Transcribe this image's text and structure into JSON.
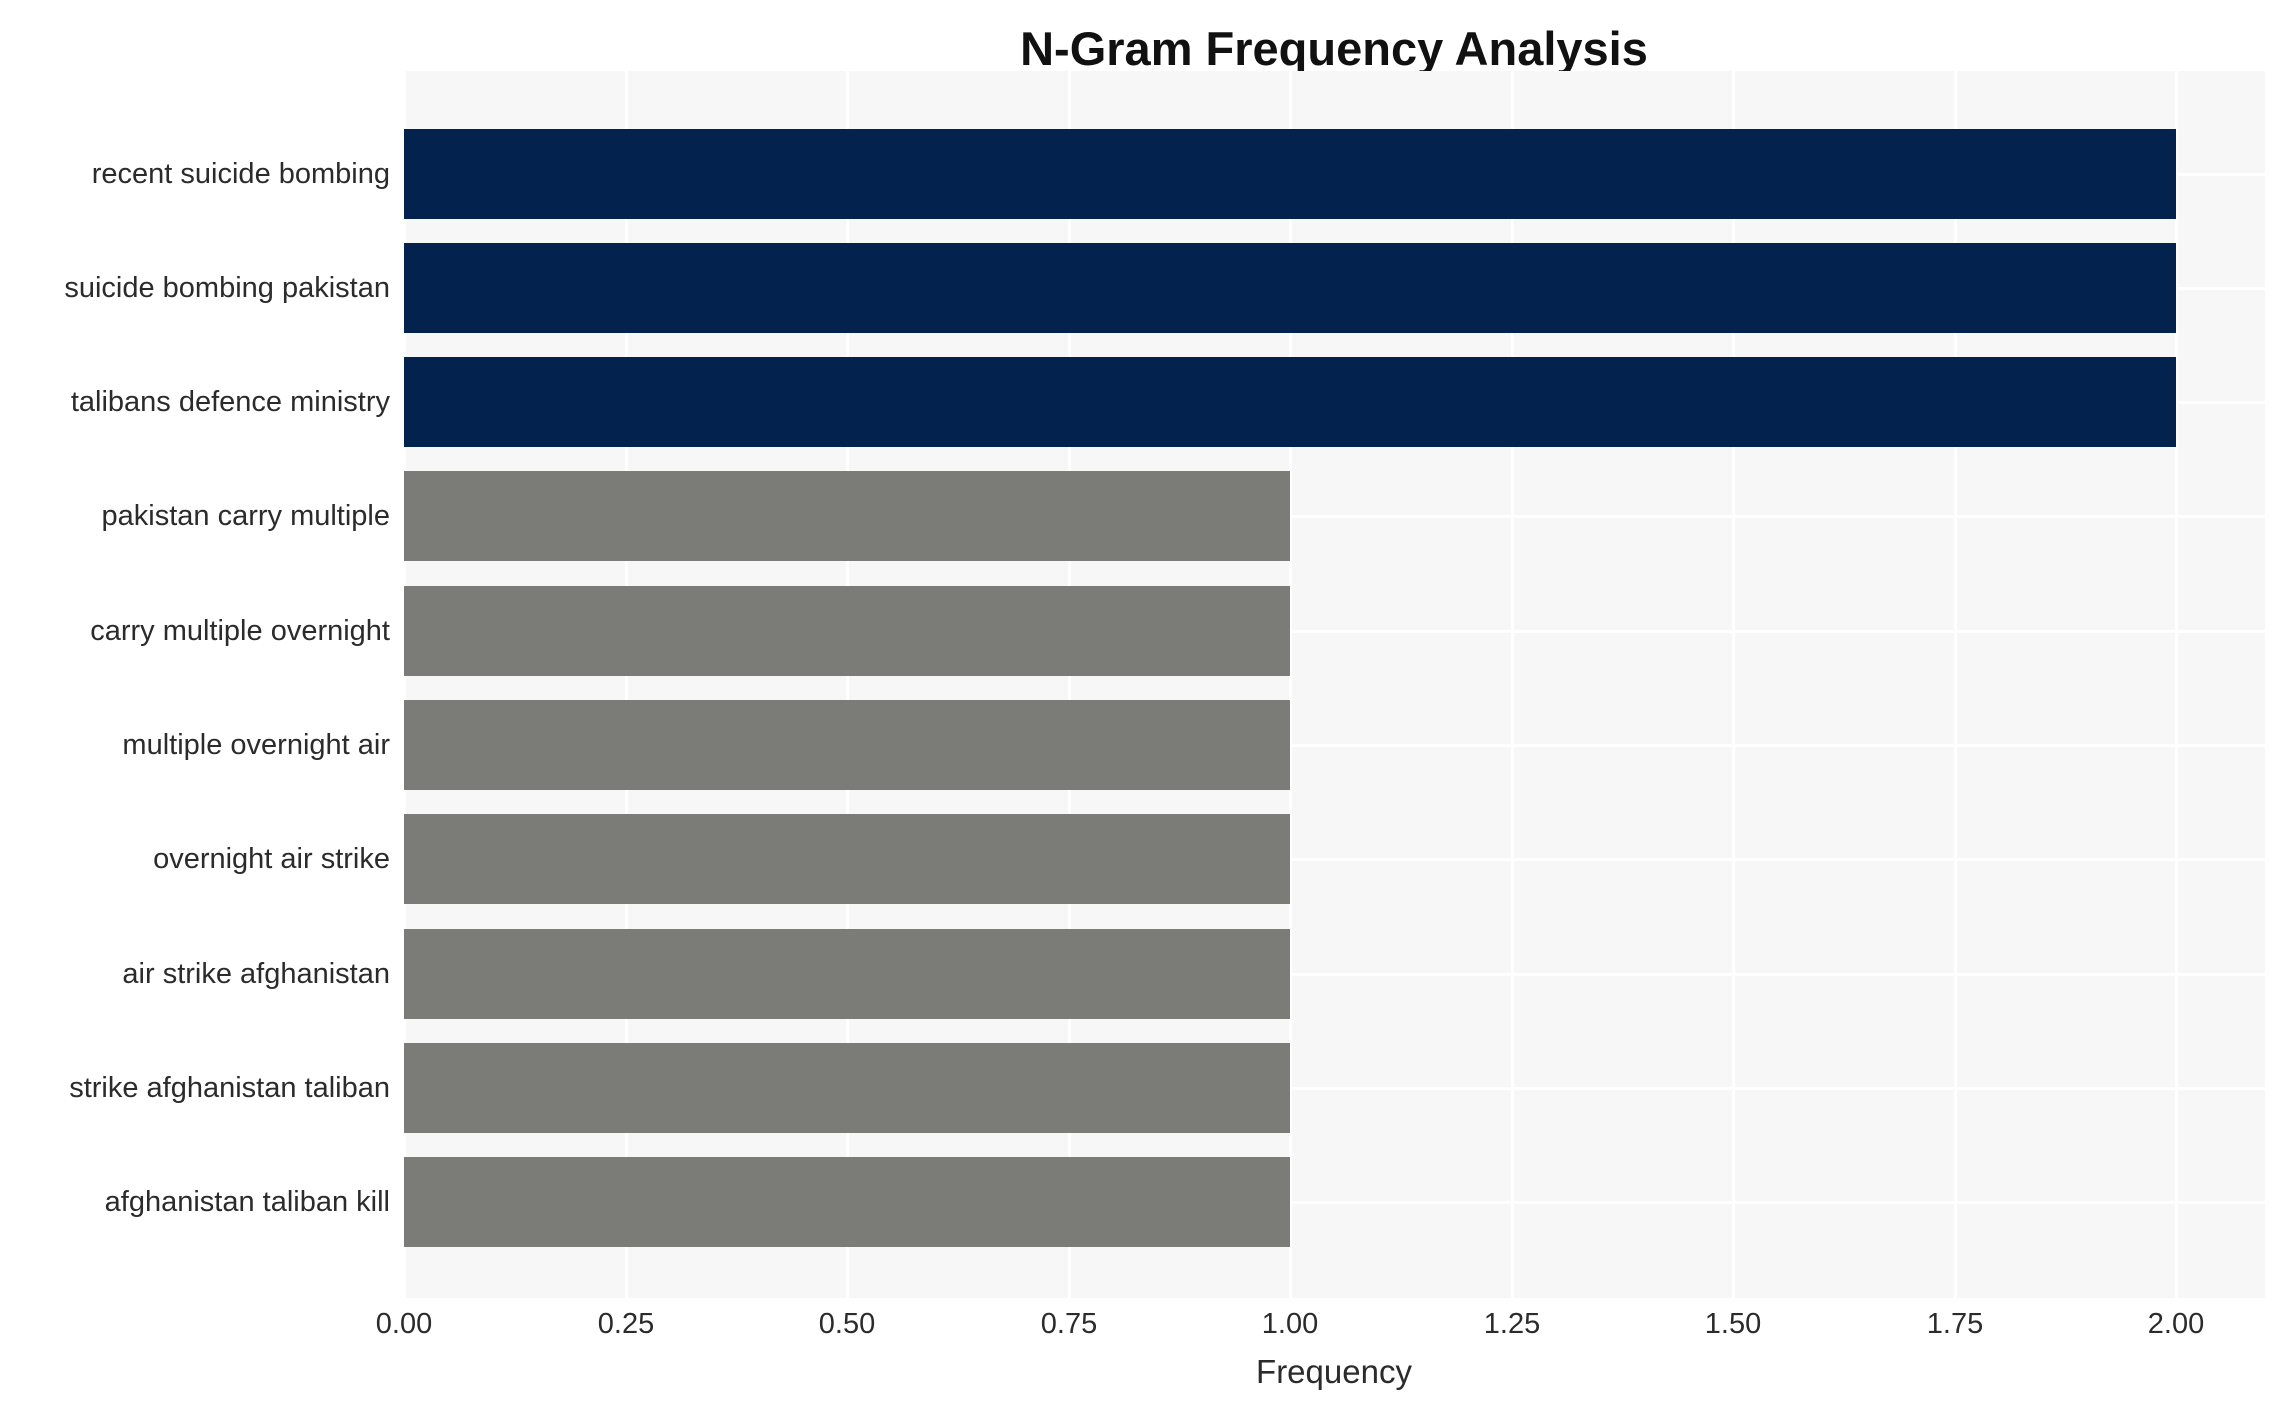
{
  "chart_data": {
    "type": "bar",
    "orientation": "horizontal",
    "title": "N-Gram Frequency Analysis",
    "xlabel": "Frequency",
    "ylabel": "",
    "categories": [
      "recent suicide bombing",
      "suicide bombing pakistan",
      "talibans defence ministry",
      "pakistan carry multiple",
      "carry multiple overnight",
      "multiple overnight air",
      "overnight air strike",
      "air strike afghanistan",
      "strike afghanistan taliban",
      "afghanistan taliban kill"
    ],
    "values": [
      2,
      2,
      2,
      1,
      1,
      1,
      1,
      1,
      1,
      1
    ],
    "bar_colors": [
      "#03234e",
      "#03234e",
      "#03234e",
      "#7b7b77",
      "#7b7b77",
      "#7b7b77",
      "#7b7b77",
      "#7b7b77",
      "#7b7b77",
      "#7b7b77"
    ],
    "xlim": [
      0,
      2.1
    ],
    "xticks": [
      {
        "value": 0.0,
        "label": "0.00"
      },
      {
        "value": 0.25,
        "label": "0.25"
      },
      {
        "value": 0.5,
        "label": "0.50"
      },
      {
        "value": 0.75,
        "label": "0.75"
      },
      {
        "value": 1.0,
        "label": "1.00"
      },
      {
        "value": 1.25,
        "label": "1.25"
      },
      {
        "value": 1.5,
        "label": "1.50"
      },
      {
        "value": 1.75,
        "label": "1.75"
      },
      {
        "value": 2.0,
        "label": "2.00"
      }
    ],
    "grid": true,
    "legend_position": "none",
    "colors": {
      "plot_background": "#f7f7f7",
      "grid_line": "#ffffff",
      "tick_text": "#2b2b2b",
      "title_text": "#111111"
    }
  }
}
